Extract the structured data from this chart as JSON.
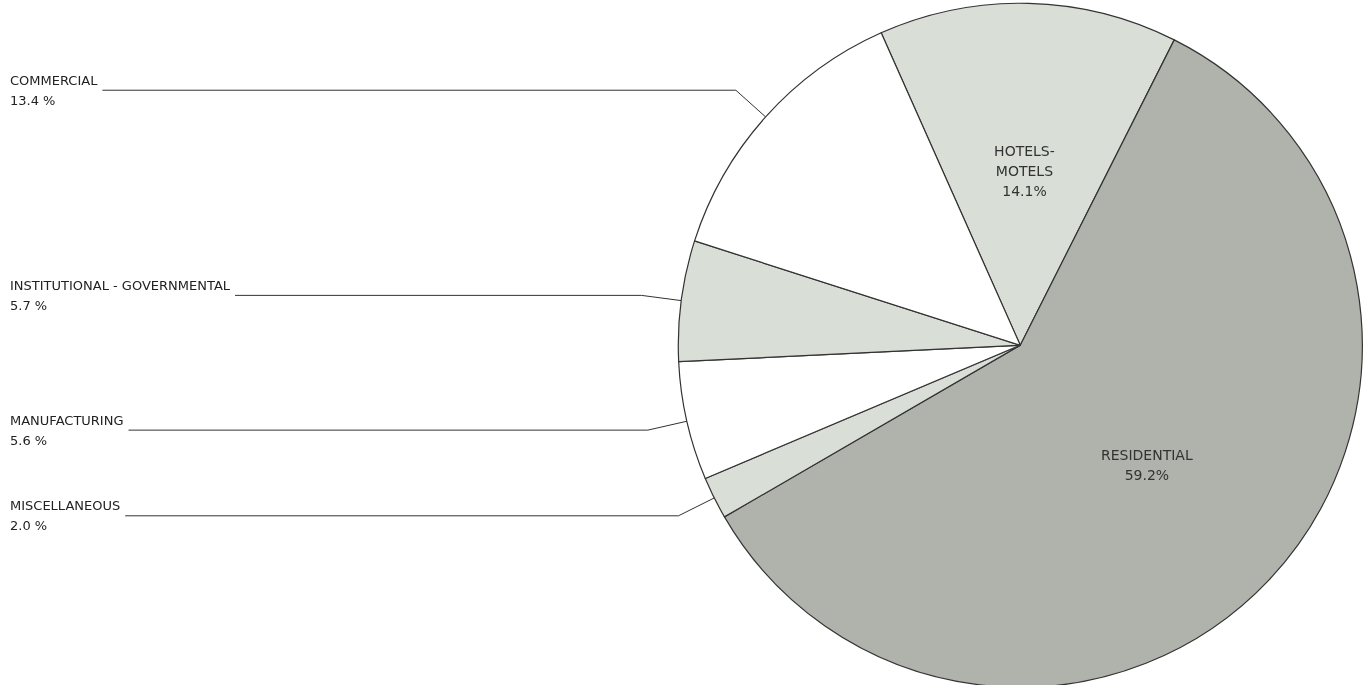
{
  "chart_data": {
    "type": "pie",
    "categories": [
      "HOTELS-\nMOTELS",
      "RESIDENTIAL",
      "MISCELLANEOUS",
      "MANUFACTURING",
      "INSTITUTIONAL - GOVERNMENTAL",
      "COMMERCIAL"
    ],
    "values": [
      14.1,
      59.2,
      2.0,
      5.6,
      5.7,
      13.4
    ],
    "value_labels": [
      "14.1%",
      "59.2%",
      "2.0 %",
      "5.6 %",
      "5.7 %",
      "13.4 %"
    ],
    "colors": [
      "#d9ded6",
      "#b0b3ac",
      "#d9ded6",
      "#ffffff",
      "#d9ded6",
      "#ffffff"
    ],
    "legend": false
  }
}
